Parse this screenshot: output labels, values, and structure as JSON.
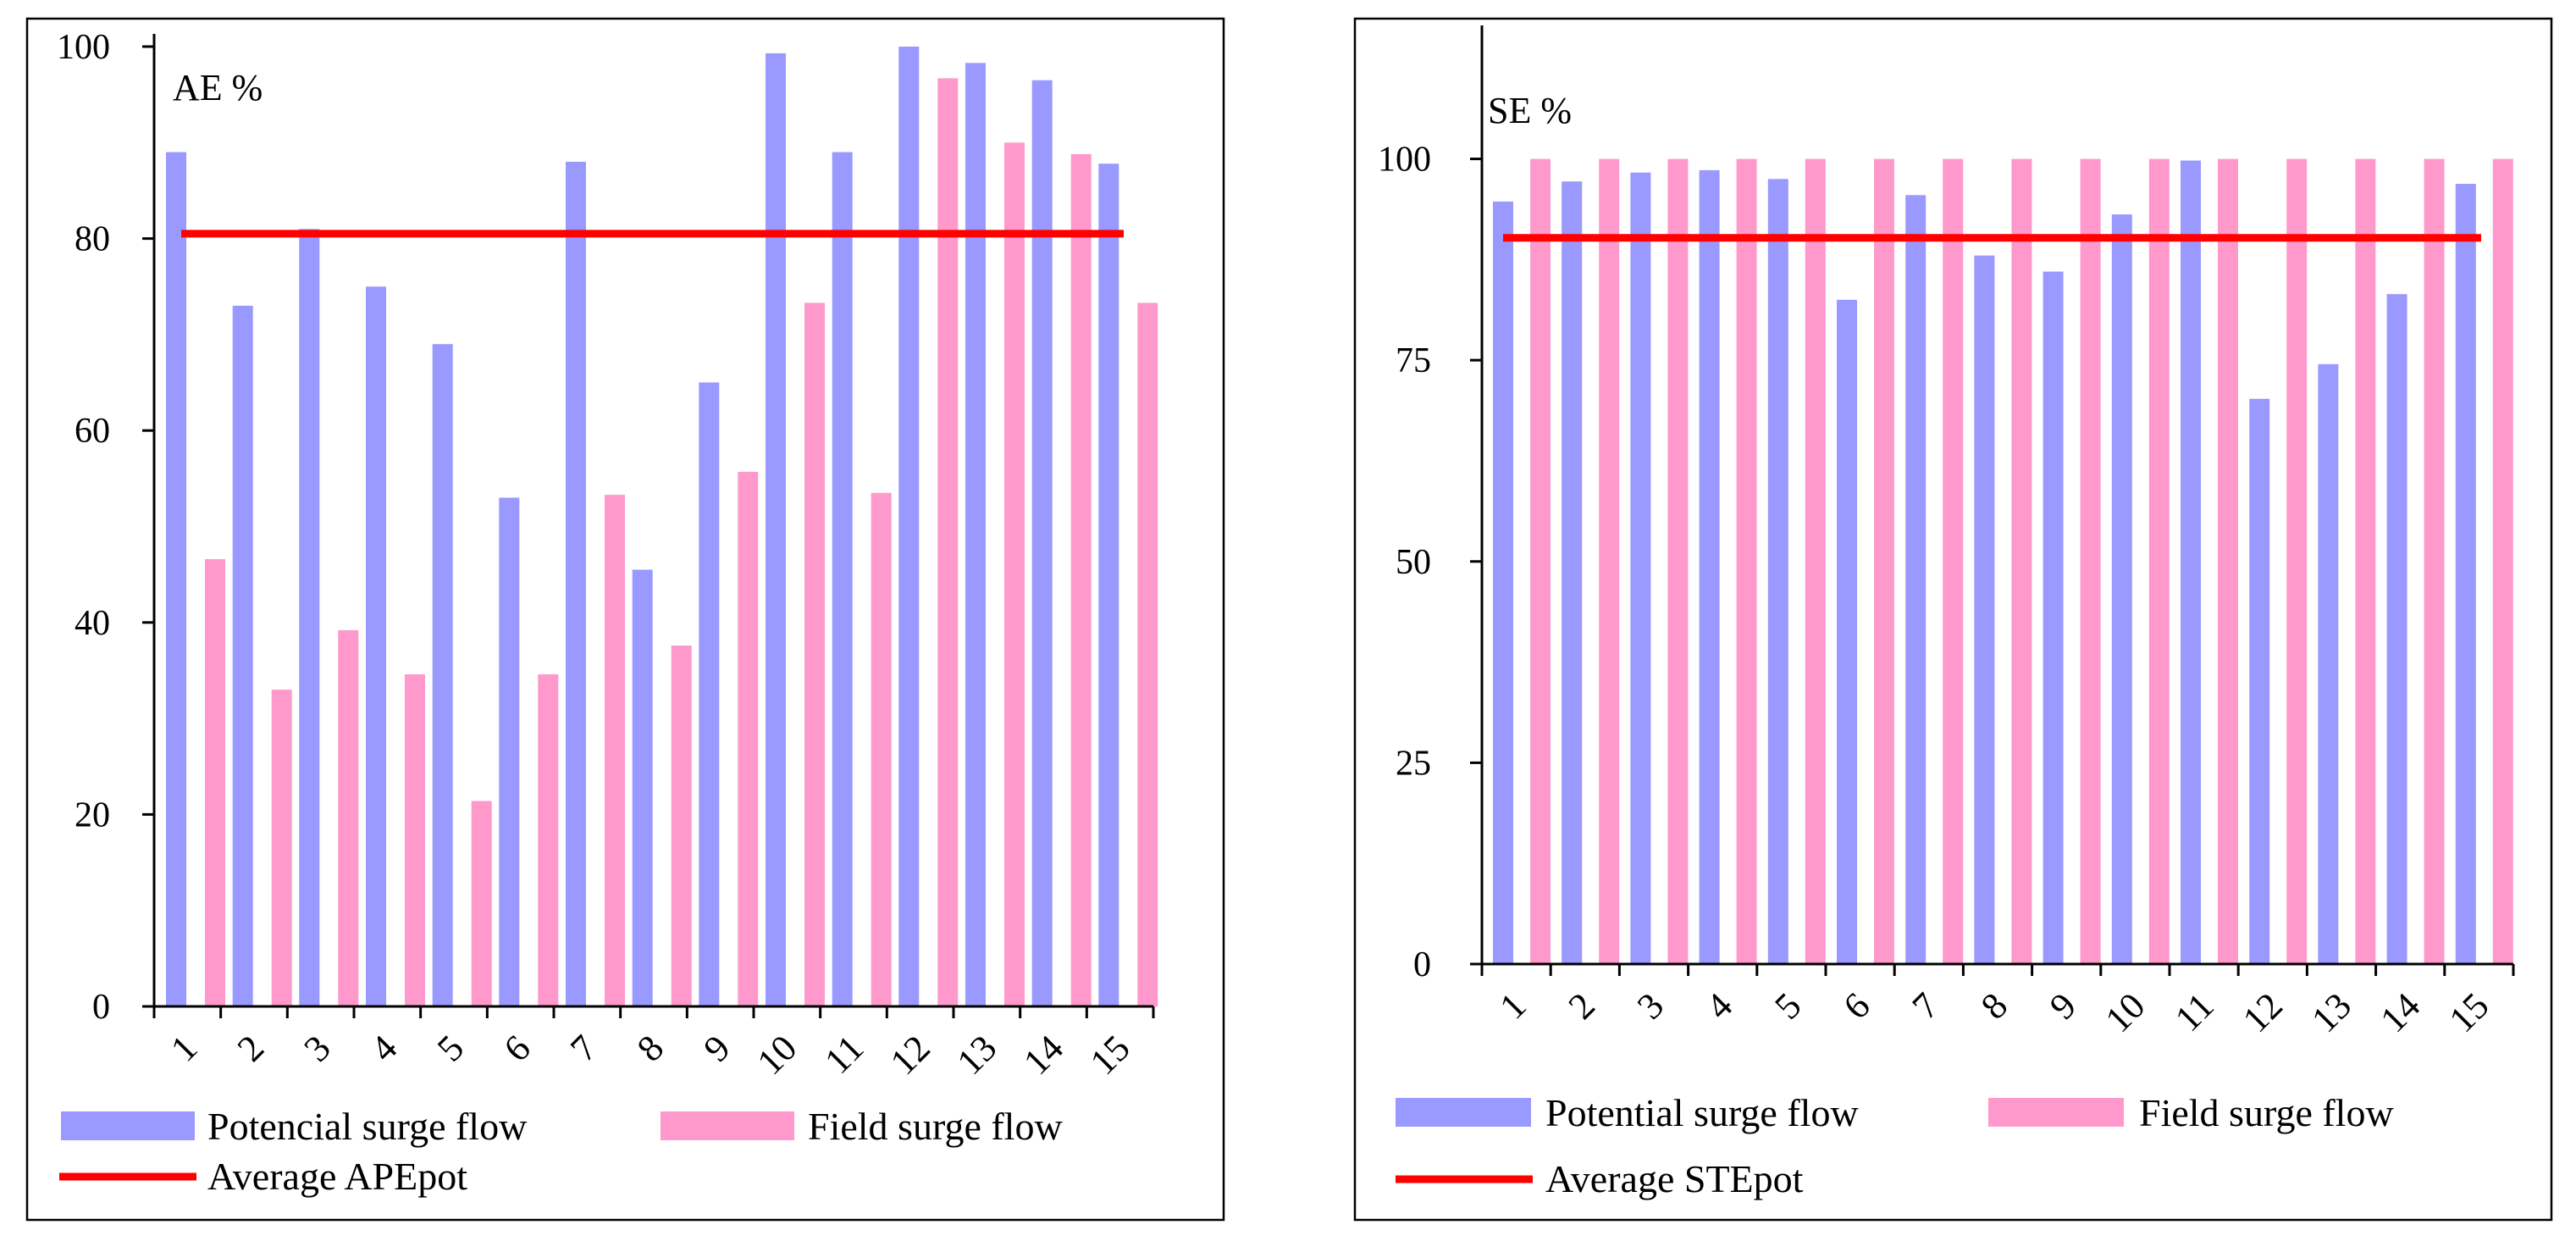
{
  "chart_data": [
    {
      "type": "bar",
      "ylabel": "AE %",
      "ylim": [
        0,
        100
      ],
      "yticks": [
        0,
        20,
        40,
        60,
        80,
        100
      ],
      "categories": [
        "1",
        "2",
        "3",
        "4",
        "5",
        "6",
        "7",
        "8",
        "9",
        "10",
        "11",
        "12",
        "13",
        "14",
        "15"
      ],
      "series": [
        {
          "name": "Potencial surge flow",
          "color": "#9999ff",
          "values": [
            89,
            73,
            81,
            75,
            69,
            53,
            88,
            45.5,
            65,
            99.3,
            89,
            100,
            98.3,
            96.5,
            87.8
          ]
        },
        {
          "name": "Field surge flow",
          "color": "#ff99cc",
          "values": [
            46.6,
            33,
            39.2,
            34.6,
            21.4,
            34.6,
            53.3,
            37.6,
            55.7,
            73.3,
            53.5,
            96.7,
            90,
            88.8,
            73.3
          ]
        }
      ],
      "reference_line": {
        "name": "Average APEpot",
        "value": 80.5,
        "color": "#ff0000"
      },
      "legend": "bottom"
    },
    {
      "type": "bar",
      "ylabel": "SE %",
      "ylim": [
        0,
        115
      ],
      "yticks": [
        0,
        25,
        50,
        75,
        100
      ],
      "categories": [
        "1",
        "2",
        "3",
        "4",
        "5",
        "6",
        "7",
        "8",
        "9",
        "10",
        "11",
        "12",
        "13",
        "14",
        "15"
      ],
      "series": [
        {
          "name": "Potential surge flow",
          "color": "#9999ff",
          "values": [
            94.7,
            97.2,
            98.3,
            98.6,
            97.5,
            82.5,
            95.5,
            88,
            86,
            93.1,
            99.8,
            70.2,
            74.5,
            83.2,
            96.9
          ]
        },
        {
          "name": "Field surge flow",
          "color": "#ff99cc",
          "values": [
            100,
            100,
            100,
            100,
            100,
            100,
            100,
            100,
            100,
            100,
            100,
            100,
            100,
            100,
            100
          ]
        }
      ],
      "reference_line": {
        "name": "Average STEpot",
        "value": 90.2,
        "color": "#ff0000"
      },
      "legend": "bottom"
    }
  ]
}
